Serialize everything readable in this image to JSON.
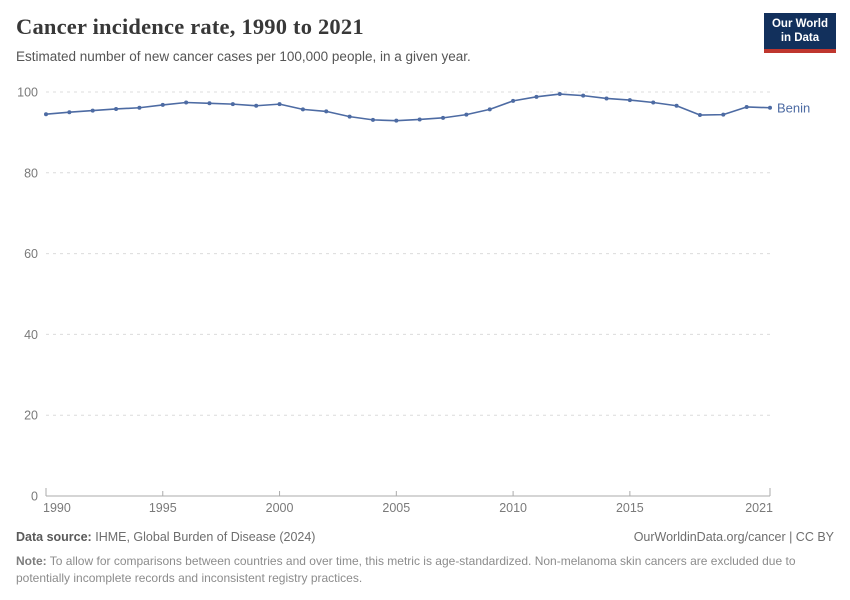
{
  "header": {
    "title": "Cancer incidence rate, 1990 to 2021",
    "subtitle": "Estimated number of new cancer cases per 100,000 people, in a given year."
  },
  "logo": {
    "line1": "Our World",
    "line2": "in Data",
    "bg_color": "#12305c",
    "accent_color": "#bf362e"
  },
  "chart_data": {
    "type": "line",
    "title": "Cancer incidence rate, 1990 to 2021",
    "xlabel": "",
    "ylabel": "",
    "xlim": [
      1990,
      2021
    ],
    "ylim": [
      0,
      100
    ],
    "grid": "horizontal-dashed",
    "legend_position": "end-of-line",
    "xticks": [
      1990,
      1995,
      2000,
      2005,
      2010,
      2015,
      2021
    ],
    "yticks": [
      0,
      20,
      40,
      60,
      80,
      100
    ],
    "x": [
      1990,
      1991,
      1992,
      1993,
      1994,
      1995,
      1996,
      1997,
      1998,
      1999,
      2000,
      2001,
      2002,
      2003,
      2004,
      2005,
      2006,
      2007,
      2008,
      2009,
      2010,
      2011,
      2012,
      2013,
      2014,
      2015,
      2016,
      2017,
      2018,
      2019,
      2020,
      2021
    ],
    "series": [
      {
        "name": "Benin",
        "color": "#4d6ba3",
        "values": [
          94.5,
          95.0,
          95.4,
          95.8,
          96.1,
          96.8,
          97.4,
          97.2,
          97.0,
          96.6,
          97.0,
          95.7,
          95.2,
          93.9,
          93.1,
          92.9,
          93.2,
          93.6,
          94.4,
          95.7,
          97.8,
          98.8,
          99.5,
          99.1,
          98.4,
          98.0,
          97.4,
          96.6,
          94.3,
          94.4,
          96.3,
          96.1
        ]
      }
    ],
    "axis_color": "#ababab",
    "grid_color": "#dcdcdc",
    "tick_label_color": "#7a7a7a"
  },
  "footer": {
    "source_label": "Data source:",
    "source_value": "IHME, Global Burden of Disease (2024)",
    "link": "OurWorldinData.org/cancer | CC BY",
    "note_label": "Note:",
    "note_text": "To allow for comparisons between countries and over time, this metric is age-standardized. Non-melanoma skin cancers are excluded due to potentially incomplete records and inconsistent registry practices."
  }
}
